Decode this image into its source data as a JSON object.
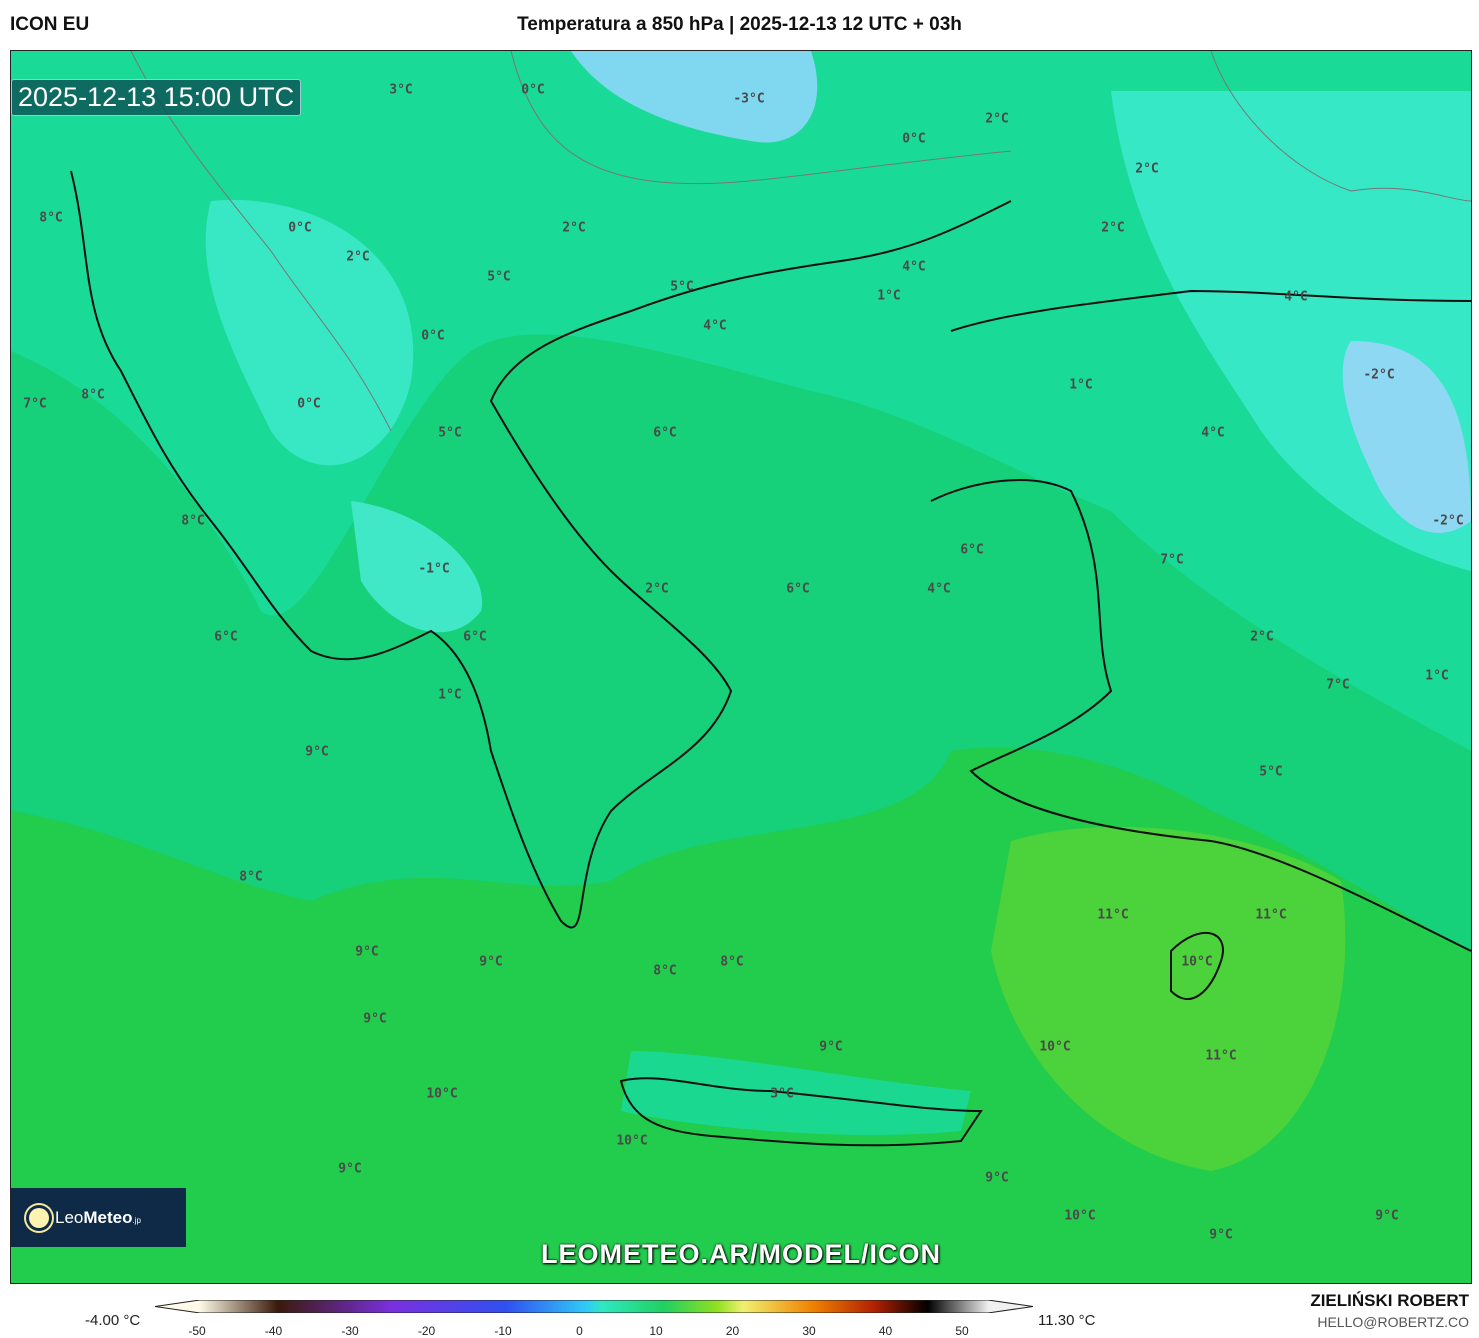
{
  "header": {
    "model": "ICON EU",
    "title": "Temperatura a 850 hPa | 2025-12-13 12 UTC + 03h"
  },
  "map": {
    "timestamp": "2025-12-13 15:00 UTC",
    "url": "LEOMETEO.AR/MODEL/ICON",
    "labels": [
      "3°C",
      "0°C",
      "-3°C",
      "0°C",
      "2°C",
      "2°C",
      "8°C",
      "0°C",
      "2°C",
      "2°C",
      "2°C",
      "5°C",
      "4°C",
      "5°C",
      "1°C",
      "4°C",
      "4°C",
      "0°C",
      "-2°C",
      "1°C",
      "7°C",
      "8°C",
      "0°C",
      "5°C",
      "6°C",
      "4°C",
      "8°C",
      "-2°C",
      "6°C",
      "7°C",
      "-1°C",
      "2°C",
      "6°C",
      "4°C",
      "6°C",
      "6°C",
      "2°C",
      "1°C",
      "7°C",
      "1°C",
      "9°C",
      "5°C",
      "8°C",
      "11°C",
      "11°C",
      "9°C",
      "9°C",
      "8°C",
      "8°C",
      "10°C",
      "9°C",
      "9°C",
      "10°C",
      "11°C",
      "10°C",
      "3°C",
      "10°C",
      "9°C",
      "9°C",
      "10°C",
      "9°C",
      "9°C"
    ]
  },
  "logo": {
    "text_light": "Leo",
    "text_bold": "Meteo",
    "suffix": ".jp"
  },
  "colorbar": {
    "min_label": "-4.00 °C",
    "max_label": "11.30 °C",
    "ticks": [
      "-50",
      "-40",
      "-30",
      "-20",
      "-10",
      "0",
      "10",
      "20",
      "30",
      "40",
      "50"
    ]
  },
  "credit": {
    "author": "ZIELIŃSKI ROBERT",
    "email": "HELLO@ROBERTZ.CO"
  }
}
